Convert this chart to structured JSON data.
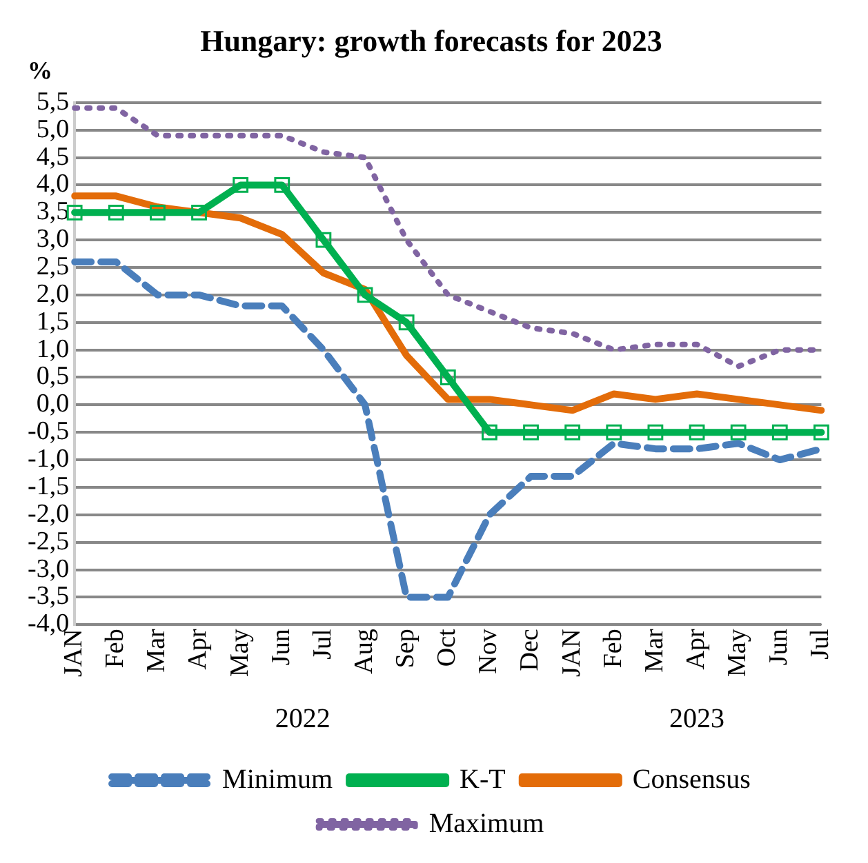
{
  "chart_data": {
    "type": "line",
    "title": "Hungary: growth forecasts for 2023",
    "ylabel": "%",
    "categories": [
      "JAN",
      "Feb",
      "Mar",
      "Apr",
      "May",
      "Jun",
      "Jul",
      "Aug",
      "Sep",
      "Oct",
      "Nov",
      "Dec",
      "JAN",
      "Feb",
      "Mar",
      "Apr",
      "May",
      "Jun",
      "Jul"
    ],
    "annotations": [
      "2022",
      "2023"
    ],
    "series": [
      {
        "name": "Minimum",
        "color": "#4a7ebb",
        "line_style": "dashed",
        "marker": "none",
        "values": [
          2.6,
          2.6,
          2.0,
          2.0,
          1.8,
          1.8,
          1.0,
          0.0,
          -3.5,
          -3.5,
          -2.0,
          -1.3,
          -1.3,
          -0.7,
          -0.8,
          -0.8,
          -0.7,
          -1.0,
          -0.8
        ]
      },
      {
        "name": "K-T",
        "color": "#00b050",
        "line_style": "solid",
        "marker": "square",
        "values": [
          3.5,
          3.5,
          3.5,
          3.5,
          4.0,
          4.0,
          3.0,
          2.0,
          1.5,
          0.5,
          -0.5,
          -0.5,
          -0.5,
          -0.5,
          -0.5,
          -0.5,
          -0.5,
          -0.5,
          -0.5
        ]
      },
      {
        "name": "Consensus",
        "color": "#e36c09",
        "line_style": "solid",
        "marker": "none",
        "values": [
          3.8,
          3.8,
          3.6,
          3.5,
          3.4,
          3.1,
          2.4,
          2.1,
          0.9,
          0.1,
          0.1,
          0.0,
          -0.1,
          0.2,
          0.1,
          0.2,
          0.1,
          0.0,
          -0.1
        ]
      },
      {
        "name": "Maximum",
        "color": "#8064a2",
        "line_style": "dotted",
        "marker": "none",
        "values": [
          5.4,
          5.4,
          4.9,
          4.9,
          4.9,
          4.9,
          4.6,
          4.5,
          3.0,
          2.0,
          1.7,
          1.4,
          1.3,
          1.0,
          1.1,
          1.1,
          0.7,
          1.0,
          1.0
        ]
      }
    ],
    "ylim": [
      -4,
      5.5
    ],
    "yticks": [
      {
        "value": -4,
        "label": "-4,0"
      },
      {
        "value": -3.5,
        "label": "-3,5"
      },
      {
        "value": -3,
        "label": "-3,0"
      },
      {
        "value": -2.5,
        "label": "-2,5"
      },
      {
        "value": -2,
        "label": "-2,0"
      },
      {
        "value": -1.5,
        "label": "-1,5"
      },
      {
        "value": -1,
        "label": "-1,0"
      },
      {
        "value": -0.5,
        "label": "-0,5"
      },
      {
        "value": 0,
        "label": "0,0"
      },
      {
        "value": 0.5,
        "label": "0,5"
      },
      {
        "value": 1,
        "label": "1,0"
      },
      {
        "value": 1.5,
        "label": "1,5"
      },
      {
        "value": 2,
        "label": "2,0"
      },
      {
        "value": 2.5,
        "label": "2,5"
      },
      {
        "value": 3,
        "label": "3,0"
      },
      {
        "value": 3.5,
        "label": "3,5"
      },
      {
        "value": 4,
        "label": "4,0"
      },
      {
        "value": 4.5,
        "label": "4,5"
      },
      {
        "value": 5,
        "label": "5,0"
      },
      {
        "value": 5.5,
        "label": "5,5"
      }
    ],
    "grid": "y",
    "legend": "bottom"
  }
}
